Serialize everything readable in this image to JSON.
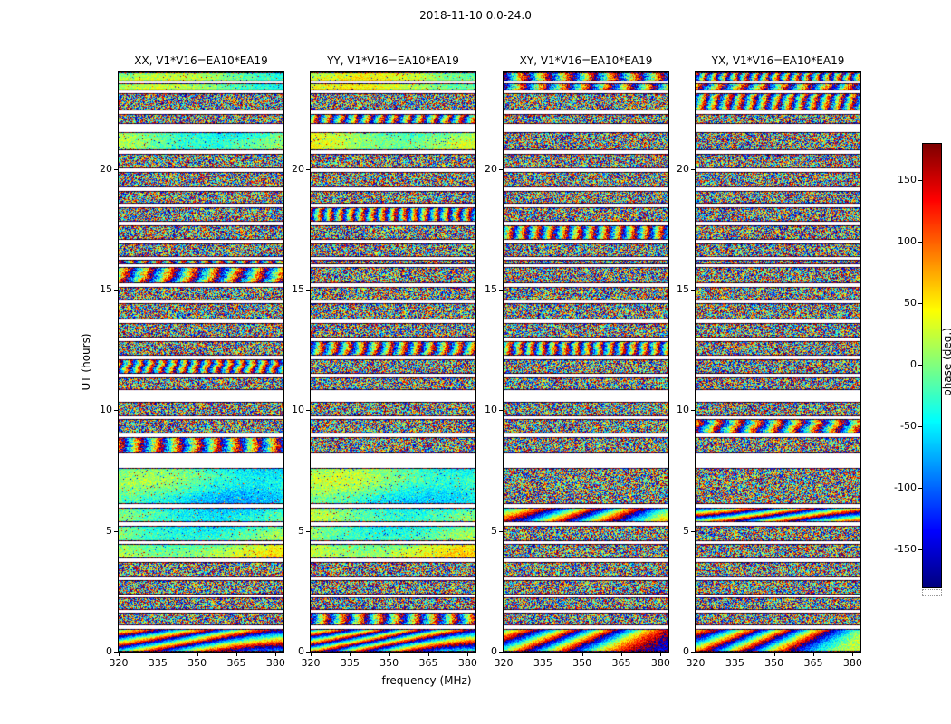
{
  "figure": {
    "title": "2018-11-10 0.0-24.0",
    "background": "#ffffff"
  },
  "axes": {
    "x_label": "frequency (MHz)",
    "y_label": "UT (hours)",
    "x_ticks": [
      "320",
      "335",
      "350",
      "365",
      "380"
    ],
    "x_tick_values": [
      320,
      335,
      350,
      365,
      380
    ],
    "y_ticks": [
      "0",
      "5",
      "10",
      "15",
      "20"
    ],
    "y_tick_values": [
      0,
      5,
      10,
      15,
      20
    ],
    "x_range": [
      320,
      383
    ],
    "y_range": [
      0,
      24
    ]
  },
  "panels": [
    {
      "id": "xx",
      "title": "XX, V1*V16=EA10*EA19"
    },
    {
      "id": "yy",
      "title": "YY, V1*V16=EA10*EA19"
    },
    {
      "id": "xy",
      "title": "XY, V1*V16=EA10*EA19"
    },
    {
      "id": "yx",
      "title": "YX, V1*V16=EA10*EA19"
    }
  ],
  "colorbar": {
    "label": "phase (deg.)",
    "ticks": [
      "150",
      "100",
      "50",
      "0",
      "-50",
      "-100",
      "-150"
    ],
    "tick_values": [
      150,
      100,
      50,
      0,
      -50,
      -100,
      -150
    ],
    "range": [
      -180,
      180
    ],
    "colormap": "jet"
  },
  "chart_data": {
    "type": "heatmap",
    "title": "2018-11-10 0.0-24.0",
    "xlabel": "frequency (MHz)",
    "ylabel": "UT (hours)",
    "value_label": "phase (deg.)",
    "value_range_deg": [
      -180,
      180
    ],
    "x_range_mhz": [
      320,
      383
    ],
    "y_range_hours": [
      0,
      24
    ],
    "colormap": "jet",
    "panels": [
      "XX, V1*V16=EA10*EA19",
      "YY, V1*V16=EA10*EA19",
      "XY, V1*V16=EA10*EA19",
      "YX, V1*V16=EA10*EA19"
    ],
    "content": "interferometric visibility phase versus frequency and time; dense pseudo-random fringe/noise texture per scan, separated by white inter-scan gaps",
    "scan_gaps_ut": [
      [
        0.95,
        1.08
      ],
      [
        1.6,
        1.72
      ],
      [
        2.25,
        2.38
      ],
      [
        2.95,
        3.08
      ],
      [
        3.72,
        3.85
      ],
      [
        4.45,
        4.58
      ],
      [
        5.22,
        5.35
      ],
      [
        5.98,
        6.12
      ],
      [
        7.6,
        8.2
      ],
      [
        8.88,
        9.02
      ],
      [
        9.62,
        9.76
      ],
      [
        10.35,
        10.85
      ],
      [
        11.38,
        11.52
      ],
      [
        12.12,
        12.26
      ],
      [
        12.88,
        13.02
      ],
      [
        13.62,
        13.76
      ],
      [
        14.42,
        14.56
      ],
      [
        15.12,
        15.28
      ],
      [
        15.95,
        16.05
      ],
      [
        16.22,
        16.36
      ],
      [
        16.92,
        17.06
      ],
      [
        17.68,
        17.82
      ],
      [
        18.42,
        18.56
      ],
      [
        19.08,
        19.22
      ],
      [
        19.88,
        20.02
      ],
      [
        20.62,
        20.76
      ],
      [
        21.52,
        21.88
      ],
      [
        22.28,
        22.42
      ],
      [
        23.12,
        23.26
      ],
      [
        23.55,
        23.62
      ]
    ],
    "smooth_phase_ut_ranges_xx_yy": [
      [
        3.85,
        7.55
      ],
      [
        20.8,
        21.5
      ],
      [
        23.3,
        24.0
      ]
    ],
    "coherent_fringe_ut_ranges": [
      [
        0.0,
        0.95
      ],
      [
        5.35,
        6.0
      ]
    ]
  },
  "layout_colors": {
    "frame": "#000000",
    "gap": "#ffffff"
  }
}
